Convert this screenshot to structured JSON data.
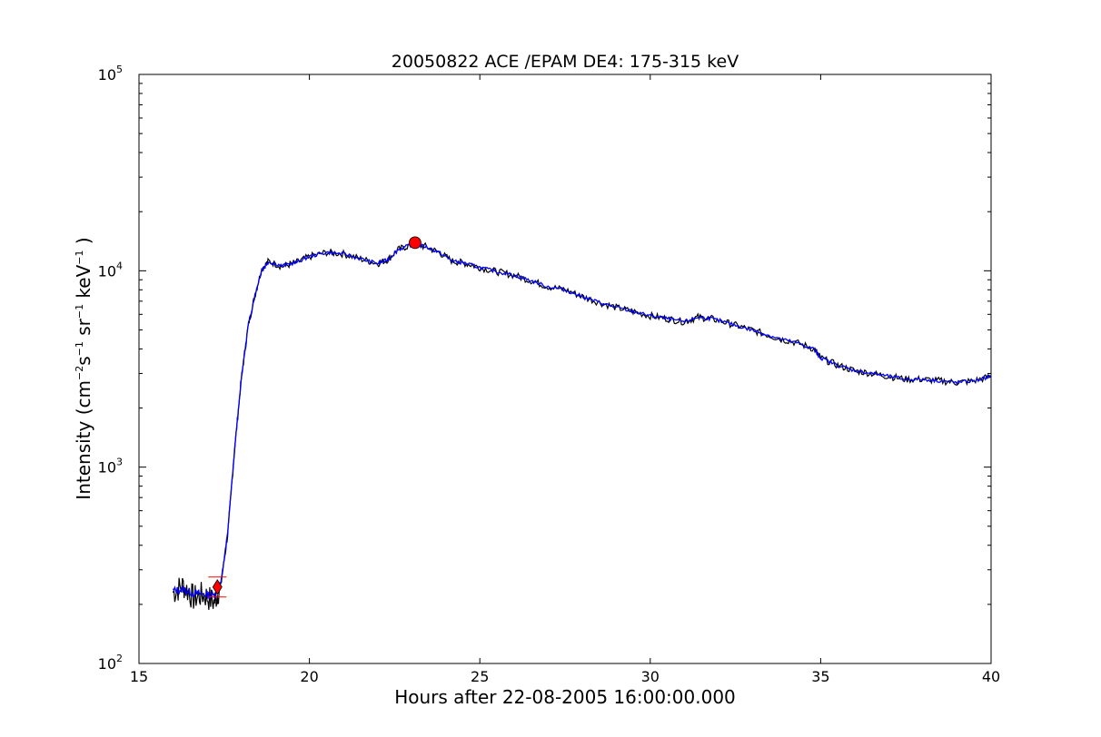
{
  "chart_data": {
    "type": "line",
    "title": "20050822 ACE /EPAM DE4: 175-315 keV",
    "xlabel": "Hours after 22-08-2005 16:00:00.000",
    "ylabel": {
      "prefix": "Intensity (cm",
      "exp1": "−2",
      "mid1": "s",
      "exp2": "−1",
      "mid2": " sr",
      "exp3": "−1",
      "mid3": " keV",
      "exp4": "−1",
      "suffix": " )"
    },
    "xlim": [
      15,
      40
    ],
    "ylim": [
      100,
      100000
    ],
    "yscale": "log",
    "x_ticks": [
      "15",
      "20",
      "25",
      "30",
      "35",
      "40"
    ],
    "y_ticks": [
      {
        "base": "10",
        "exp": "2"
      },
      {
        "base": "10",
        "exp": "3"
      },
      {
        "base": "10",
        "exp": "4"
      },
      {
        "base": "10",
        "exp": "5"
      }
    ],
    "grid": false,
    "series": [
      {
        "color": "#000000",
        "x": [
          16.0,
          16.3,
          16.6,
          16.9,
          17.2,
          17.4,
          17.6,
          17.8,
          18.0,
          18.2,
          18.4,
          18.6,
          18.8,
          19.2,
          19.6,
          20.0,
          20.5,
          21.0,
          21.5,
          22.0,
          22.3,
          22.6,
          23.0,
          23.4,
          23.8,
          24.2,
          24.6,
          25.0,
          25.5,
          26.0,
          26.5,
          27.0,
          27.5,
          28.0,
          28.5,
          29.0,
          29.5,
          30.0,
          30.5,
          31.0,
          31.4,
          31.8,
          32.3,
          32.8,
          33.3,
          33.8,
          34.3,
          34.8,
          35.0,
          35.5,
          36.0,
          36.5,
          37.0,
          37.5,
          38.0,
          38.5,
          39.0,
          39.5,
          40.0
        ],
        "y": [
          230,
          250,
          215,
          225,
          205,
          250,
          450,
          1200,
          2800,
          5200,
          7500,
          10200,
          11200,
          10500,
          11000,
          11800,
          12400,
          12200,
          11500,
          10900,
          11400,
          12800,
          13600,
          13300,
          12400,
          11200,
          10900,
          10400,
          9900,
          9500,
          8900,
          8300,
          8000,
          7400,
          6900,
          6500,
          6200,
          5900,
          5700,
          5500,
          5800,
          5700,
          5400,
          5100,
          4800,
          4500,
          4300,
          4000,
          3600,
          3300,
          3100,
          3000,
          2900,
          2800,
          2800,
          2750,
          2700,
          2750,
          2900
        ]
      },
      {
        "color": "#0000ff",
        "x": [
          16.0,
          16.3,
          16.6,
          16.9,
          17.2,
          17.4,
          17.6,
          17.8,
          18.0,
          18.2,
          18.4,
          18.6,
          18.8,
          19.2,
          19.6,
          20.0,
          20.5,
          21.0,
          21.5,
          22.0,
          22.3,
          22.6,
          23.0,
          23.4,
          23.8,
          24.2,
          24.6,
          25.0,
          25.5,
          26.0,
          26.5,
          27.0,
          27.5,
          28.0,
          28.5,
          29.0,
          29.5,
          30.0,
          30.5,
          31.0,
          31.4,
          31.8,
          32.3,
          32.8,
          33.3,
          33.8,
          34.3,
          34.8,
          35.0,
          35.5,
          36.0,
          36.5,
          37.0,
          37.5,
          38.0,
          38.5,
          39.0,
          39.5,
          40.0
        ],
        "y": [
          235,
          238,
          228,
          226,
          222,
          255,
          460,
          1200,
          2800,
          5200,
          7500,
          10100,
          11100,
          10600,
          11000,
          11800,
          12400,
          12200,
          11500,
          10900,
          11400,
          12800,
          13600,
          13300,
          12400,
          11200,
          10900,
          10400,
          9900,
          9500,
          8900,
          8300,
          8000,
          7400,
          6900,
          6500,
          6200,
          5900,
          5700,
          5500,
          5800,
          5700,
          5400,
          5100,
          4800,
          4500,
          4300,
          4000,
          3600,
          3300,
          3100,
          3000,
          2900,
          2800,
          2800,
          2750,
          2700,
          2750,
          2900
        ]
      }
    ],
    "markers": [
      {
        "shape": "diamond",
        "color": "#ff0000",
        "x": 17.3,
        "y": 245
      },
      {
        "shape": "circle",
        "color": "#ff0000",
        "x": 23.1,
        "y": 13900
      }
    ]
  }
}
